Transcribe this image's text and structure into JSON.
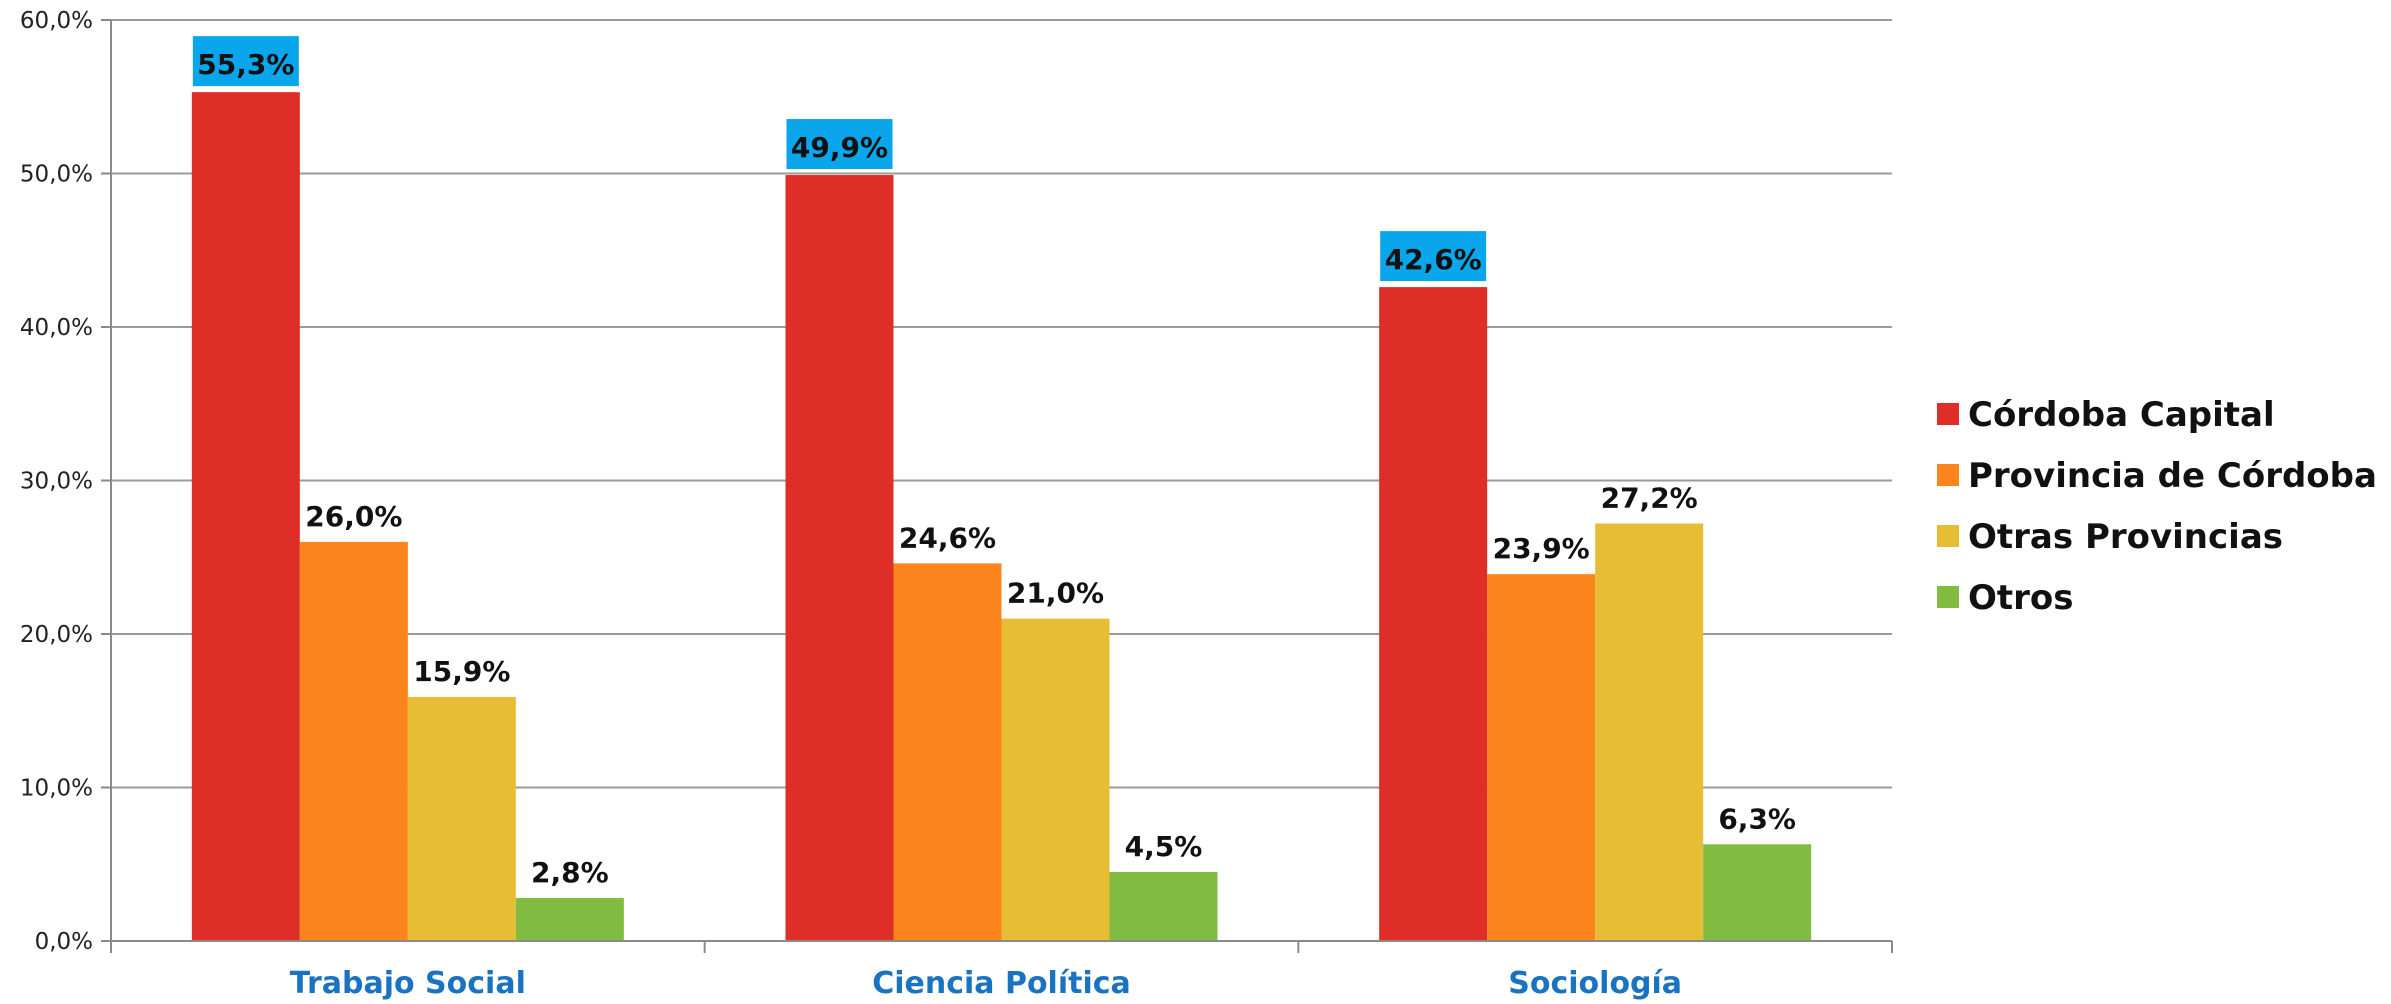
{
  "chart_data": {
    "type": "bar",
    "categories": [
      "Trabajo Social",
      "Ciencia Política",
      "Sociología"
    ],
    "series": [
      {
        "name": "Córdoba Capital",
        "color": "#df2e28",
        "values": [
          55.3,
          49.9,
          42.6
        ],
        "labels": [
          "55,3%",
          "49,9%",
          "42,6%"
        ],
        "label_highlight": "#0aa6ec"
      },
      {
        "name": "Provincia de Córdoba",
        "color": "#fb841d",
        "values": [
          26.0,
          24.6,
          23.9
        ],
        "labels": [
          "26,0%",
          "24,6%",
          "23,9%"
        ]
      },
      {
        "name": "Otras Provincias",
        "color": "#e8bd36",
        "values": [
          15.9,
          21.0,
          27.2
        ],
        "labels": [
          "15,9%",
          "21,0%",
          "27,2%"
        ]
      },
      {
        "name": "Otros",
        "color": "#82bb41",
        "values": [
          2.8,
          4.5,
          6.3
        ],
        "labels": [
          "2,8%",
          "4,5%",
          "6,3%"
        ]
      }
    ],
    "ylim": [
      0,
      60
    ],
    "yticks": [
      0,
      10,
      20,
      30,
      40,
      50,
      60
    ],
    "ytick_labels": [
      "0,0%",
      "10,0%",
      "20,0%",
      "30,0%",
      "40,0%",
      "50,0%",
      "60,0%"
    ],
    "title": "",
    "xlabel": "",
    "ylabel": "",
    "grid": true,
    "legend_position": "right",
    "category_label_color": "#1a73c0"
  }
}
